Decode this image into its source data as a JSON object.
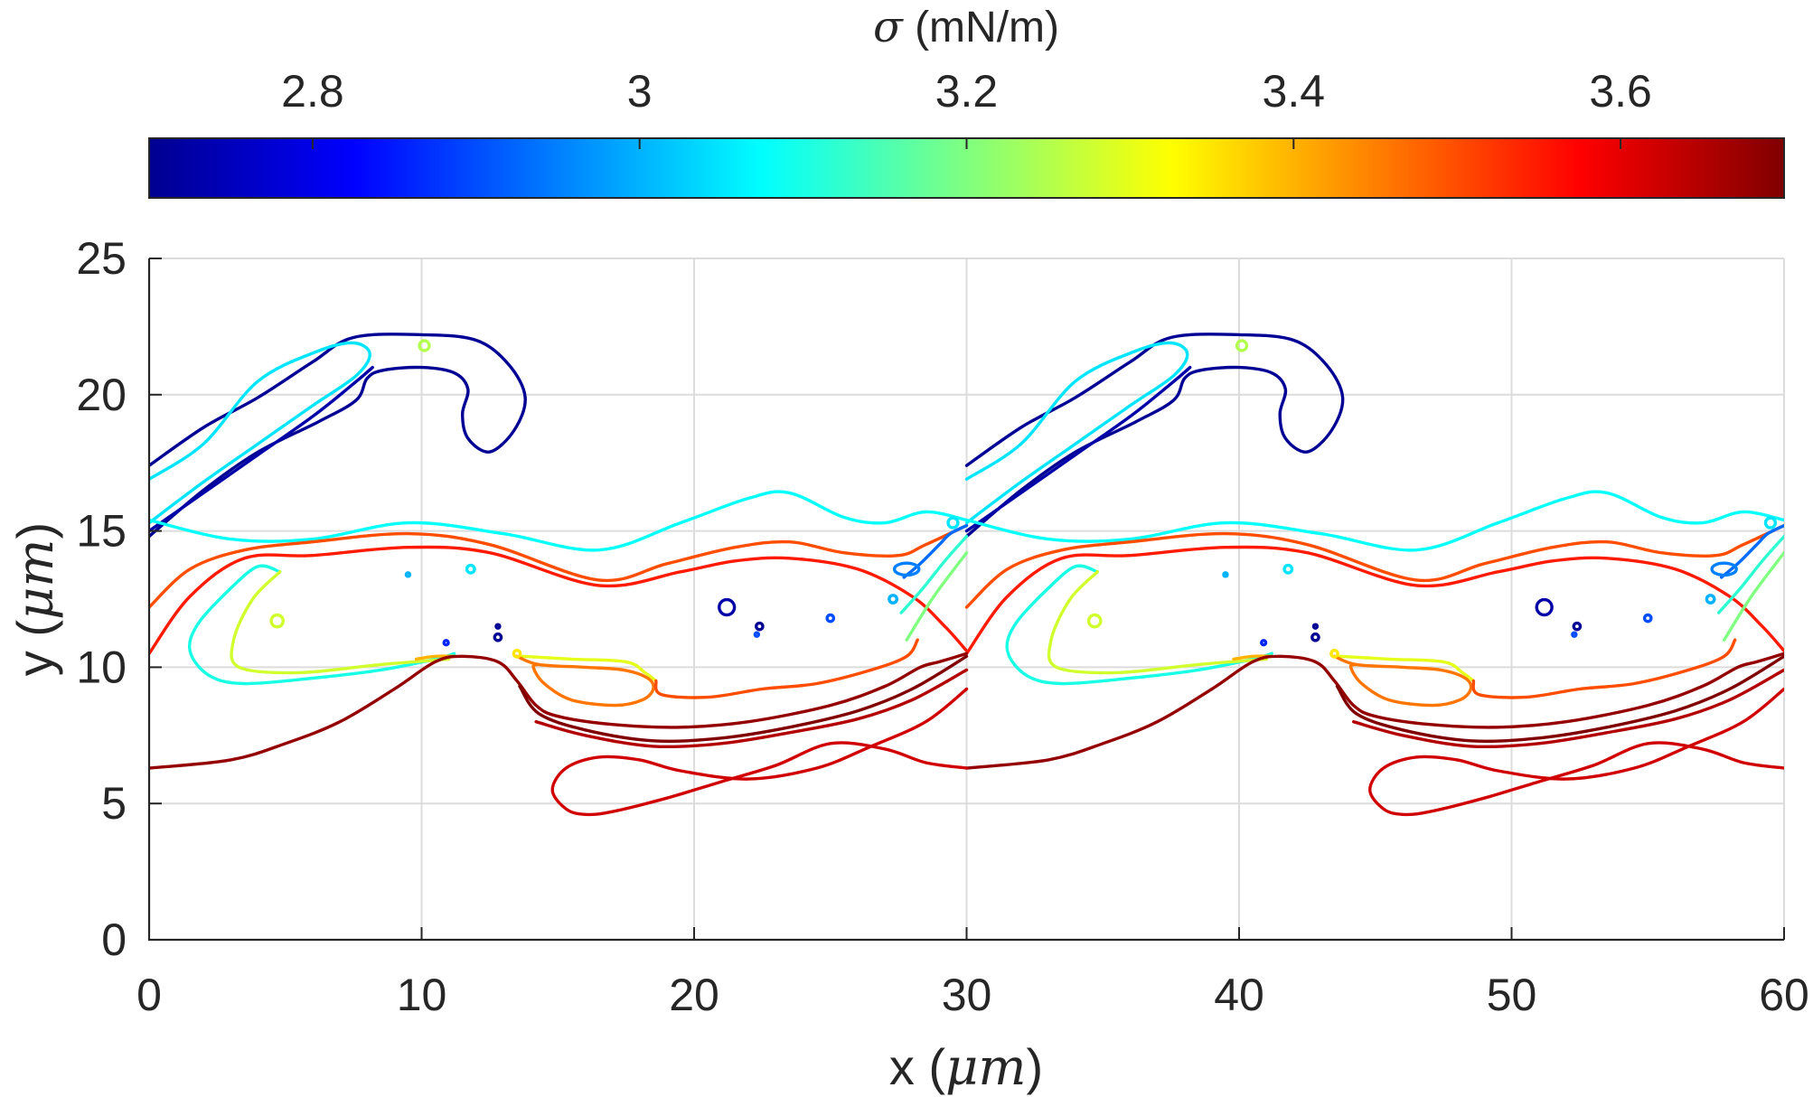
{
  "chart_data": {
    "type": "contour",
    "xlabel_prefix": "x (",
    "xlabel_unit": "μm",
    "xlabel_suffix": ")",
    "ylabel_prefix": "y (",
    "ylabel_unit": "μm",
    "ylabel_suffix": ")",
    "xlim": [
      0,
      60
    ],
    "ylim": [
      0,
      25
    ],
    "xticks": [
      0,
      10,
      20,
      30,
      40,
      50,
      60
    ],
    "yticks": [
      0,
      5,
      10,
      15,
      20,
      25
    ],
    "grid": true,
    "colorbar": {
      "location": "top",
      "colormap": "jet",
      "label_symbol": "σ",
      "label_unit": " (mN/m)",
      "range": [
        2.7,
        3.7
      ],
      "ticks": [
        2.8,
        3.0,
        3.2,
        3.4,
        3.6
      ],
      "tick_labels": [
        "2.8",
        "3",
        "3.2",
        "3.4",
        "3.6"
      ]
    },
    "period_x": 30,
    "contours": [
      {
        "level": 2.72,
        "points": [
          [
            0,
            17.4
          ],
          [
            2,
            18.8
          ],
          [
            4,
            19.9
          ],
          [
            6,
            21.2
          ],
          [
            7.5,
            22.1
          ],
          [
            10,
            22.2
          ],
          [
            12,
            22.0
          ],
          [
            13.2,
            21.1
          ],
          [
            13.8,
            19.9
          ],
          [
            13.4,
            18.7
          ],
          [
            12.5,
            17.9
          ],
          [
            11.7,
            18.4
          ],
          [
            11.5,
            19.3
          ],
          [
            11.7,
            20.2
          ],
          [
            11.2,
            20.8
          ],
          [
            10,
            21.0
          ],
          [
            8.6,
            20.9
          ],
          [
            8,
            20.6
          ],
          [
            7.6,
            19.8
          ],
          [
            6.2,
            19.0
          ],
          [
            4,
            17.9
          ],
          [
            2,
            16.5
          ],
          [
            0,
            14.8
          ]
        ]
      },
      {
        "level": 2.74,
        "points": [
          [
            0,
            15.0
          ],
          [
            2,
            16.4
          ],
          [
            4,
            17.8
          ],
          [
            6,
            19.2
          ],
          [
            7.5,
            20.4
          ],
          [
            8.2,
            21.0
          ]
        ]
      },
      {
        "level": 3.05,
        "points": [
          [
            0,
            15.3
          ],
          [
            2,
            16.8
          ],
          [
            4,
            18.2
          ],
          [
            6,
            19.6
          ],
          [
            7.6,
            20.7
          ],
          [
            8.1,
            21.5
          ],
          [
            7.5,
            21.9
          ],
          [
            6.2,
            21.6
          ],
          [
            4,
            20.5
          ],
          [
            2,
            18.2
          ],
          [
            0,
            16.9
          ]
        ]
      },
      {
        "level": 3.08,
        "points": [
          [
            0,
            15.4
          ],
          [
            3,
            14.7
          ],
          [
            6,
            14.7
          ],
          [
            9.5,
            15.3
          ],
          [
            13,
            14.9
          ],
          [
            16.5,
            14.3
          ],
          [
            19.5,
            15.3
          ],
          [
            22,
            16.2
          ],
          [
            23.5,
            16.4
          ],
          [
            25.5,
            15.5
          ],
          [
            27,
            15.3
          ],
          [
            28.5,
            15.7
          ],
          [
            30,
            15.4
          ]
        ]
      },
      {
        "level": 3.5,
        "points": [
          [
            0,
            12.2
          ],
          [
            1.5,
            13.6
          ],
          [
            3.5,
            14.3
          ],
          [
            6,
            14.6
          ],
          [
            9.5,
            14.9
          ],
          [
            12.5,
            14.5
          ],
          [
            16.5,
            13.2
          ],
          [
            19,
            13.8
          ],
          [
            21.5,
            14.4
          ],
          [
            23.5,
            14.6
          ],
          [
            25.5,
            14.2
          ],
          [
            27.5,
            14.1
          ],
          [
            28.5,
            14.5
          ],
          [
            30,
            15.2
          ]
        ]
      },
      {
        "level": 3.55,
        "points": [
          [
            0,
            10.5
          ],
          [
            1.5,
            12.6
          ],
          [
            3.5,
            14.0
          ],
          [
            6,
            14.1
          ],
          [
            9.5,
            14.4
          ],
          [
            12.5,
            14.2
          ],
          [
            16.5,
            13.0
          ],
          [
            19.5,
            13.5
          ],
          [
            21.5,
            13.9
          ],
          [
            23.5,
            14.0
          ],
          [
            26,
            13.6
          ],
          [
            28,
            12.6
          ],
          [
            29.2,
            11.5
          ],
          [
            30,
            10.6
          ]
        ]
      },
      {
        "level": 3.1,
        "points": [
          [
            4.8,
            13.5
          ],
          [
            4,
            13.7
          ],
          [
            3,
            12.9
          ],
          [
            1.8,
            11.6
          ],
          [
            1.5,
            10.6
          ],
          [
            2.2,
            9.7
          ],
          [
            3.5,
            9.4
          ],
          [
            6,
            9.6
          ],
          [
            8.5,
            9.9
          ],
          [
            10.5,
            10.3
          ],
          [
            11.2,
            10.5
          ]
        ]
      },
      {
        "level": 3.28,
        "points": [
          [
            4.8,
            13.5
          ],
          [
            3.8,
            12.5
          ],
          [
            3.1,
            11.0
          ],
          [
            3.3,
            10.0
          ],
          [
            5.5,
            9.8
          ],
          [
            8.5,
            10.1
          ],
          [
            11,
            10.3
          ]
        ]
      },
      {
        "level": 3.4,
        "points": [
          [
            9.8,
            10.3
          ],
          [
            10.5,
            10.4
          ],
          [
            11.2,
            10.4
          ]
        ]
      },
      {
        "level": 3.3,
        "points": [
          [
            13.7,
            10.4
          ],
          [
            15.5,
            10.3
          ],
          [
            17.5,
            10.2
          ],
          [
            18.2,
            9.8
          ],
          [
            18.6,
            9.5
          ]
        ]
      },
      {
        "level": 3.46,
        "points": [
          [
            13.5,
            10.4
          ],
          [
            14.3,
            10.1
          ],
          [
            16,
            10.0
          ],
          [
            17.4,
            9.9
          ],
          [
            18.3,
            9.6
          ],
          [
            18.5,
            9.2
          ],
          [
            18.1,
            8.8
          ],
          [
            17.1,
            8.6
          ],
          [
            15.5,
            8.8
          ],
          [
            14.5,
            9.4
          ],
          [
            14.1,
            10.0
          ],
          [
            14.3,
            10.1
          ]
        ]
      },
      {
        "level": 3.5,
        "points": [
          [
            18.6,
            9.5
          ],
          [
            18.8,
            9.0
          ],
          [
            20.5,
            8.9
          ],
          [
            22.5,
            9.2
          ],
          [
            24.5,
            9.4
          ],
          [
            26.5,
            9.9
          ],
          [
            27.8,
            10.4
          ],
          [
            28.2,
            11.0
          ]
        ]
      },
      {
        "level": 3.68,
        "points": [
          [
            0,
            6.3
          ],
          [
            3,
            6.6
          ],
          [
            5,
            7.2
          ],
          [
            7,
            8.0
          ],
          [
            9,
            9.2
          ],
          [
            10.5,
            10.2
          ],
          [
            11.5,
            10.4
          ],
          [
            12.8,
            10.2
          ],
          [
            13.5,
            9.5
          ],
          [
            14.2,
            8.6
          ],
          [
            15,
            8.2
          ],
          [
            17,
            7.9
          ],
          [
            19.5,
            7.8
          ],
          [
            22,
            8.0
          ],
          [
            25,
            8.6
          ],
          [
            27,
            9.3
          ],
          [
            28.3,
            10.0
          ],
          [
            29,
            10.2
          ],
          [
            30,
            10.5
          ]
        ]
      },
      {
        "level": 3.7,
        "points": [
          [
            13.6,
            9.3
          ],
          [
            14.3,
            8.3
          ],
          [
            16,
            7.7
          ],
          [
            18.5,
            7.3
          ],
          [
            21,
            7.4
          ],
          [
            23.5,
            7.8
          ],
          [
            26,
            8.4
          ],
          [
            28,
            9.2
          ],
          [
            30,
            10.4
          ]
        ]
      },
      {
        "level": 3.65,
        "points": [
          [
            14.2,
            8.0
          ],
          [
            16,
            7.5
          ],
          [
            18.5,
            7.1
          ],
          [
            21,
            7.2
          ],
          [
            23.5,
            7.6
          ],
          [
            26,
            8.1
          ],
          [
            28,
            8.8
          ],
          [
            30,
            9.9
          ]
        ]
      },
      {
        "level": 3.62,
        "points": [
          [
            30,
            6.3
          ],
          [
            28.5,
            6.5
          ],
          [
            27,
            7.0
          ],
          [
            25,
            7.2
          ],
          [
            23,
            6.4
          ],
          [
            21,
            5.8
          ],
          [
            19,
            5.2
          ],
          [
            17,
            4.7
          ],
          [
            16,
            4.6
          ],
          [
            15.3,
            4.8
          ],
          [
            14.8,
            5.5
          ],
          [
            15.3,
            6.3
          ],
          [
            16.5,
            6.7
          ],
          [
            18,
            6.6
          ],
          [
            19.5,
            6.2
          ],
          [
            22,
            5.9
          ],
          [
            24.5,
            6.3
          ],
          [
            26.5,
            7.1
          ],
          [
            28.5,
            8.0
          ],
          [
            30,
            9.2
          ]
        ]
      },
      {
        "level": 2.93,
        "points": [
          [
            27.7,
            13.3
          ],
          [
            28.3,
            13.8
          ],
          [
            29,
            14.5
          ],
          [
            29.4,
            14.9
          ],
          [
            30,
            15.2
          ]
        ]
      },
      {
        "level": 3.12,
        "points": [
          [
            27.6,
            12.0
          ],
          [
            28.4,
            12.9
          ],
          [
            29.2,
            13.9
          ],
          [
            30,
            14.8
          ]
        ]
      },
      {
        "level": 3.2,
        "points": [
          [
            27.8,
            11.0
          ],
          [
            28.8,
            12.6
          ],
          [
            30,
            14.2
          ]
        ]
      }
    ],
    "loops": [
      {
        "level": 3.25,
        "cx": 10.1,
        "cy": 21.8,
        "r": 0.18
      },
      {
        "level": 3.28,
        "cx": 4.7,
        "cy": 11.7,
        "r": 0.22
      },
      {
        "level": 3.05,
        "cx": 11.8,
        "cy": 13.6,
        "r": 0.14
      },
      {
        "level": 3.0,
        "cx": 9.5,
        "cy": 13.4,
        "r": 0.04
      },
      {
        "level": 2.86,
        "cx": 10.9,
        "cy": 10.9,
        "r": 0.08
      },
      {
        "level": 2.72,
        "cx": 12.8,
        "cy": 11.1,
        "r": 0.12
      },
      {
        "level": 2.72,
        "cx": 12.8,
        "cy": 11.5,
        "r": 0.05
      },
      {
        "level": 3.35,
        "cx": 13.5,
        "cy": 10.5,
        "r": 0.12
      },
      {
        "level": 2.74,
        "cx": 21.2,
        "cy": 12.2,
        "r": 0.28
      },
      {
        "level": 2.72,
        "cx": 22.4,
        "cy": 11.5,
        "r": 0.12
      },
      {
        "level": 2.9,
        "cx": 22.3,
        "cy": 11.2,
        "r": 0.06
      },
      {
        "level": 2.9,
        "cx": 25.0,
        "cy": 11.8,
        "r": 0.12
      },
      {
        "level": 3.0,
        "cx": 27.3,
        "cy": 12.5,
        "r": 0.14
      },
      {
        "level": 3.05,
        "cx": 29.5,
        "cy": 15.3,
        "r": 0.18
      },
      {
        "level": 2.95,
        "cx": 27.8,
        "cy": 13.6,
        "r": 0.45,
        "ry": 0.22
      }
    ]
  }
}
